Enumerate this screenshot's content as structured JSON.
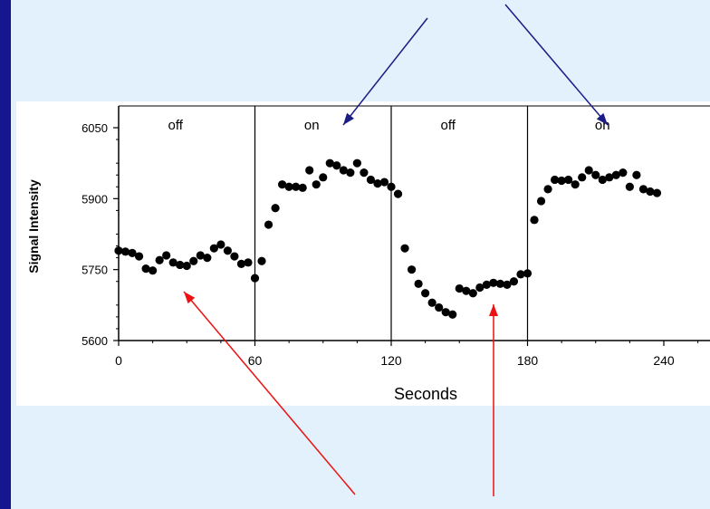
{
  "chart_data": {
    "type": "scatter",
    "xlabel": "Seconds",
    "ylabel": "Signal Intensity",
    "xlim": [
      0,
      260
    ],
    "ylim": [
      5600,
      6080
    ],
    "xticks": [
      "0",
      "60",
      "120",
      "180",
      "240"
    ],
    "yticks": [
      "5600",
      "5750",
      "5900",
      "6050"
    ],
    "xtick_values": [
      0,
      60,
      120,
      180,
      240
    ],
    "ytick_values": [
      5600,
      5750,
      5900,
      6050
    ],
    "block_boundaries": [
      60,
      120,
      180
    ],
    "blocks": [
      {
        "label": "off",
        "x_center": 25
      },
      {
        "label": "on",
        "x_center": 85
      },
      {
        "label": "off",
        "x_center": 145
      },
      {
        "label": "on",
        "x_center": 213
      }
    ],
    "grid": false,
    "series": [
      {
        "marker_color": "#000000",
        "x": [
          0,
          3,
          6,
          9,
          12,
          15,
          18,
          21,
          24,
          27,
          30,
          33,
          36,
          39,
          42,
          45,
          48,
          51,
          54,
          57,
          60,
          63,
          66,
          69,
          72,
          75,
          78,
          81,
          84,
          87,
          90,
          93,
          96,
          99,
          102,
          105,
          108,
          111,
          114,
          117,
          120,
          123,
          126,
          129,
          132,
          135,
          138,
          141,
          144,
          147,
          150,
          153,
          156,
          159,
          162,
          165,
          168,
          171,
          174,
          177,
          180,
          183,
          186,
          189,
          192,
          195,
          198,
          201,
          204,
          207,
          210,
          213,
          216,
          219,
          222,
          225,
          228,
          231,
          234,
          237
        ],
        "y": [
          5790,
          5788,
          5785,
          5778,
          5752,
          5748,
          5770,
          5780,
          5765,
          5760,
          5758,
          5768,
          5780,
          5775,
          5795,
          5803,
          5790,
          5778,
          5762,
          5765,
          5732,
          5768,
          5845,
          5880,
          5930,
          5925,
          5925,
          5923,
          5960,
          5930,
          5945,
          5975,
          5970,
          5960,
          5955,
          5975,
          5955,
          5940,
          5932,
          5935,
          5925,
          5910,
          5795,
          5750,
          5720,
          5700,
          5680,
          5670,
          5660,
          5655,
          5710,
          5705,
          5700,
          5712,
          5718,
          5722,
          5720,
          5718,
          5725,
          5740,
          5742,
          5855,
          5895,
          5920,
          5940,
          5938,
          5940,
          5930,
          5945,
          5960,
          5950,
          5940,
          5945,
          5950,
          5955,
          5925,
          5950,
          5920,
          5915,
          5912
        ]
      }
    ]
  },
  "arrows": {
    "color_top": "#1c1c85",
    "color_bottom": "#ee1111"
  }
}
